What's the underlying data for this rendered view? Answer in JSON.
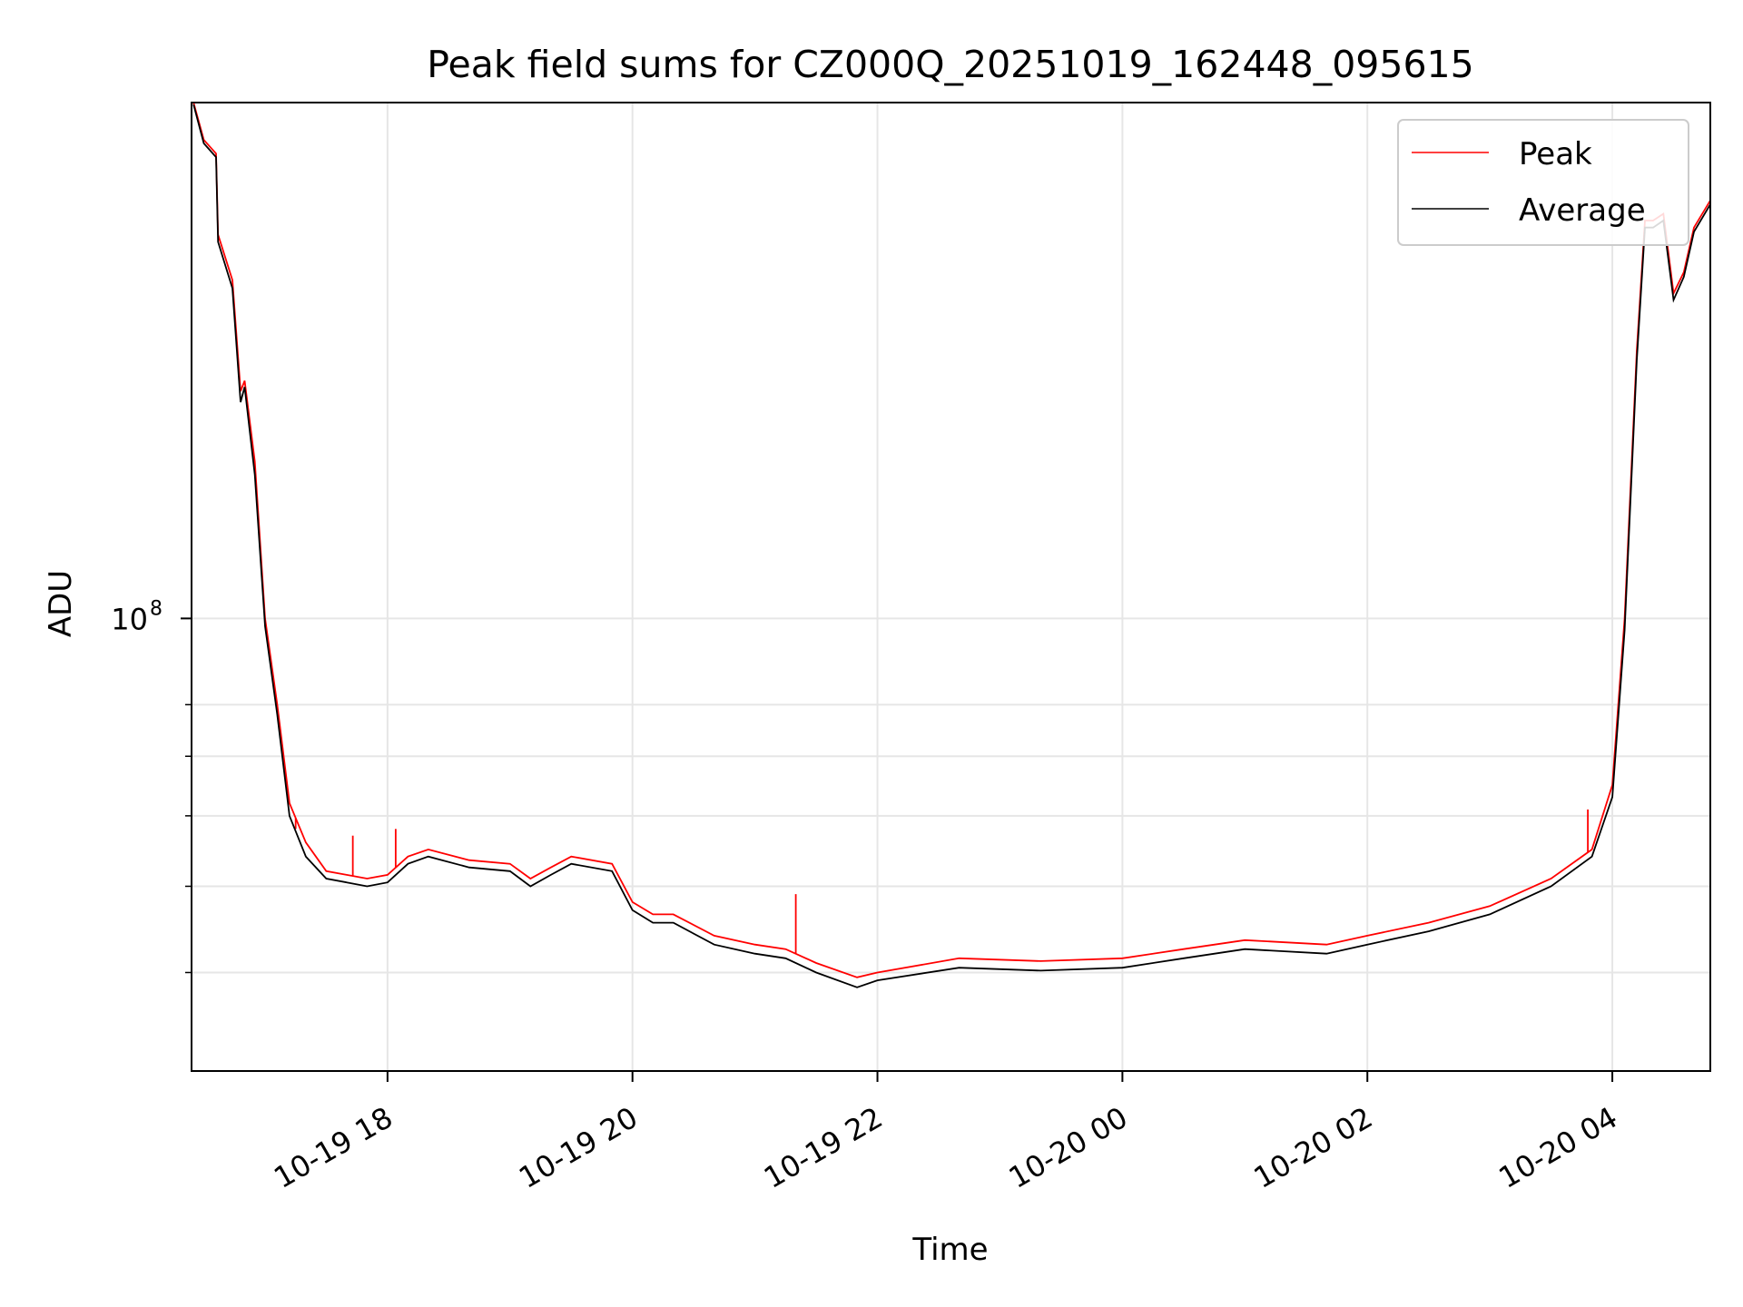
{
  "chart_data": {
    "type": "line",
    "title": "Peak field sums for CZ000Q_20251019_162448_095615",
    "xlabel": "Time",
    "ylabel": "ADU",
    "y_scale": "log",
    "grid": true,
    "legend_position": "top-right",
    "xlim": [
      "2025-10-19 16:24",
      "2025-10-20 04:48"
    ],
    "ylim": [
      31000000,
      380000000
    ],
    "x_ticks": [
      {
        "t": "2025-10-19 18:00",
        "label": "10-19 18"
      },
      {
        "t": "2025-10-19 20:00",
        "label": "10-19 20"
      },
      {
        "t": "2025-10-19 22:00",
        "label": "10-19 22"
      },
      {
        "t": "2025-10-20 00:00",
        "label": "10-20 00"
      },
      {
        "t": "2025-10-20 02:00",
        "label": "10-20 02"
      },
      {
        "t": "2025-10-20 04:00",
        "label": "10-20 04"
      }
    ],
    "y_ticks": [
      {
        "value": 100000000,
        "base": "10",
        "exp": "8"
      }
    ],
    "y_minor_ticks": [
      40000000,
      50000000,
      60000000,
      70000000,
      80000000
    ],
    "series": [
      {
        "name": "Peak",
        "color": "#ff0000",
        "points": [
          [
            "2025-10-19 16:25",
            380000000
          ],
          [
            "2025-10-19 16:30",
            345000000
          ],
          [
            "2025-10-19 16:36",
            333000000
          ],
          [
            "2025-10-19 16:37",
            270000000
          ],
          [
            "2025-10-19 16:44",
            240000000
          ],
          [
            "2025-10-19 16:48",
            180000000
          ],
          [
            "2025-10-19 16:50",
            185000000
          ],
          [
            "2025-10-19 16:55",
            150000000
          ],
          [
            "2025-10-19 17:00",
            100000000
          ],
          [
            "2025-10-19 17:06",
            80000000
          ],
          [
            "2025-10-19 17:12",
            62000000
          ],
          [
            "2025-10-19 17:20",
            56000000
          ],
          [
            "2025-10-19 17:30",
            52000000
          ],
          [
            "2025-10-19 17:40",
            51500000
          ],
          [
            "2025-10-19 17:50",
            51000000
          ],
          [
            "2025-10-19 18:00",
            51500000
          ],
          [
            "2025-10-19 18:10",
            54000000
          ],
          [
            "2025-10-19 18:20",
            55000000
          ],
          [
            "2025-10-19 18:40",
            53500000
          ],
          [
            "2025-10-19 19:00",
            53000000
          ],
          [
            "2025-10-19 19:10",
            51000000
          ],
          [
            "2025-10-19 19:20",
            52500000
          ],
          [
            "2025-10-19 19:30",
            54000000
          ],
          [
            "2025-10-19 19:50",
            53000000
          ],
          [
            "2025-10-19 20:00",
            48000000
          ],
          [
            "2025-10-19 20:10",
            46500000
          ],
          [
            "2025-10-19 20:20",
            46500000
          ],
          [
            "2025-10-19 20:40",
            44000000
          ],
          [
            "2025-10-19 21:00",
            43000000
          ],
          [
            "2025-10-19 21:15",
            42500000
          ],
          [
            "2025-10-19 21:30",
            41000000
          ],
          [
            "2025-10-19 21:50",
            39500000
          ],
          [
            "2025-10-19 22:00",
            40000000
          ],
          [
            "2025-10-19 22:40",
            41500000
          ],
          [
            "2025-10-19 23:20",
            41200000
          ],
          [
            "2025-10-20 00:00",
            41500000
          ],
          [
            "2025-10-20 00:30",
            42500000
          ],
          [
            "2025-10-20 01:00",
            43500000
          ],
          [
            "2025-10-20 01:40",
            43000000
          ],
          [
            "2025-10-20 02:00",
            44000000
          ],
          [
            "2025-10-20 02:30",
            45500000
          ],
          [
            "2025-10-20 03:00",
            47500000
          ],
          [
            "2025-10-20 03:30",
            51000000
          ],
          [
            "2025-10-20 03:50",
            55000000
          ],
          [
            "2025-10-20 04:00",
            65000000
          ],
          [
            "2025-10-20 04:06",
            100000000
          ],
          [
            "2025-10-20 04:12",
            200000000
          ],
          [
            "2025-10-20 04:16",
            280000000
          ],
          [
            "2025-10-20 04:20",
            280000000
          ],
          [
            "2025-10-20 04:25",
            285000000
          ],
          [
            "2025-10-20 04:30",
            232000000
          ],
          [
            "2025-10-20 04:35",
            245000000
          ],
          [
            "2025-10-20 04:40",
            275000000
          ],
          [
            "2025-10-20 04:48",
            295000000
          ]
        ],
        "spikes": [
          [
            "2025-10-19 17:15",
            58000000
          ],
          [
            "2025-10-19 17:43",
            57000000
          ],
          [
            "2025-10-19 18:04",
            58000000
          ],
          [
            "2025-10-19 21:20",
            49000000
          ],
          [
            "2025-10-20 03:48",
            61000000
          ]
        ]
      },
      {
        "name": "Average",
        "color": "#000000",
        "points": [
          [
            "2025-10-19 16:25",
            378000000
          ],
          [
            "2025-10-19 16:30",
            342000000
          ],
          [
            "2025-10-19 16:36",
            330000000
          ],
          [
            "2025-10-19 16:37",
            265000000
          ],
          [
            "2025-10-19 16:44",
            235000000
          ],
          [
            "2025-10-19 16:48",
            175000000
          ],
          [
            "2025-10-19 16:50",
            182000000
          ],
          [
            "2025-10-19 16:55",
            145000000
          ],
          [
            "2025-10-19 17:00",
            98000000
          ],
          [
            "2025-10-19 17:06",
            78000000
          ],
          [
            "2025-10-19 17:12",
            60000000
          ],
          [
            "2025-10-19 17:20",
            54000000
          ],
          [
            "2025-10-19 17:30",
            51000000
          ],
          [
            "2025-10-19 17:40",
            50500000
          ],
          [
            "2025-10-19 17:50",
            50000000
          ],
          [
            "2025-10-19 18:00",
            50500000
          ],
          [
            "2025-10-19 18:10",
            53000000
          ],
          [
            "2025-10-19 18:20",
            54000000
          ],
          [
            "2025-10-19 18:40",
            52500000
          ],
          [
            "2025-10-19 19:00",
            52000000
          ],
          [
            "2025-10-19 19:10",
            50000000
          ],
          [
            "2025-10-19 19:20",
            51500000
          ],
          [
            "2025-10-19 19:30",
            53000000
          ],
          [
            "2025-10-19 19:50",
            52000000
          ],
          [
            "2025-10-19 20:00",
            47000000
          ],
          [
            "2025-10-19 20:10",
            45500000
          ],
          [
            "2025-10-19 20:20",
            45500000
          ],
          [
            "2025-10-19 20:40",
            43000000
          ],
          [
            "2025-10-19 21:00",
            42000000
          ],
          [
            "2025-10-19 21:15",
            41500000
          ],
          [
            "2025-10-19 21:30",
            40000000
          ],
          [
            "2025-10-19 21:50",
            38500000
          ],
          [
            "2025-10-19 22:00",
            39200000
          ],
          [
            "2025-10-19 22:40",
            40500000
          ],
          [
            "2025-10-19 23:20",
            40200000
          ],
          [
            "2025-10-20 00:00",
            40500000
          ],
          [
            "2025-10-20 00:30",
            41500000
          ],
          [
            "2025-10-20 01:00",
            42500000
          ],
          [
            "2025-10-20 01:40",
            42000000
          ],
          [
            "2025-10-20 02:00",
            43000000
          ],
          [
            "2025-10-20 02:30",
            44500000
          ],
          [
            "2025-10-20 03:00",
            46500000
          ],
          [
            "2025-10-20 03:30",
            50000000
          ],
          [
            "2025-10-20 03:50",
            54000000
          ],
          [
            "2025-10-20 04:00",
            63000000
          ],
          [
            "2025-10-20 04:06",
            97000000
          ],
          [
            "2025-10-20 04:12",
            195000000
          ],
          [
            "2025-10-20 04:16",
            275000000
          ],
          [
            "2025-10-20 04:20",
            275000000
          ],
          [
            "2025-10-20 04:25",
            280000000
          ],
          [
            "2025-10-20 04:30",
            228000000
          ],
          [
            "2025-10-20 04:35",
            242000000
          ],
          [
            "2025-10-20 04:40",
            272000000
          ],
          [
            "2025-10-20 04:48",
            292000000
          ]
        ],
        "spikes": []
      }
    ]
  }
}
